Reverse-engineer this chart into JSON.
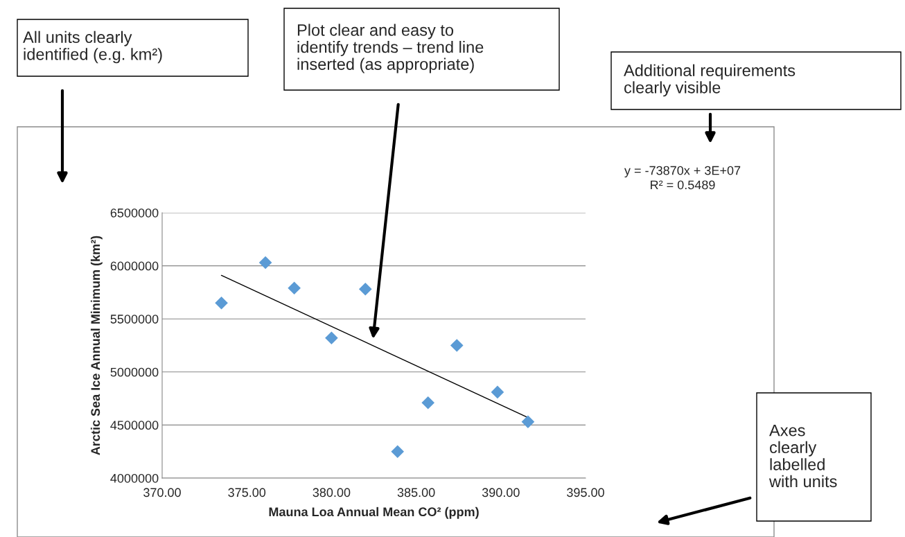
{
  "chart_data": {
    "type": "scatter",
    "xlabel": "Mauna Loa Annual Mean CO² (ppm)",
    "ylabel": "Arctic Sea Ice Annual Minimum (km²)",
    "xlim": [
      370,
      395
    ],
    "ylim": [
      4000000,
      6500000
    ],
    "xticks": [
      {
        "value": 370,
        "label": "370.00"
      },
      {
        "value": 375,
        "label": "375.00"
      },
      {
        "value": 380,
        "label": "380.00"
      },
      {
        "value": 385,
        "label": "385.00"
      },
      {
        "value": 390,
        "label": "390.00"
      },
      {
        "value": 395,
        "label": "395.00"
      }
    ],
    "yticks": [
      4000000,
      4500000,
      5000000,
      5500000,
      6000000,
      6500000
    ],
    "grid": "y",
    "legend": false,
    "marker": "diamond",
    "series": [
      {
        "color": "#5b9bd5",
        "x": [
          373.5,
          376.1,
          377.8,
          380.0,
          382.0,
          383.9,
          385.7,
          387.4,
          389.8,
          391.6
        ],
        "values": [
          5650000,
          6030000,
          5790000,
          5320000,
          5780000,
          4250000,
          4710000,
          5250000,
          4810000,
          4530000
        ]
      },
      {
        "type": "line",
        "color": "#000000",
        "marker": "none",
        "x": [
          373.5,
          391.6
        ],
        "values": [
          5910000,
          4570000
        ]
      }
    ],
    "annotations": [
      "All units clearly\nidentified (e.g. km²)",
      "Plot clear and easy to\nidentify trends – trend line\ninserted (as appropriate)",
      "Additional requirements\nclearly visible",
      "y = -73870x + 3E+07\nR² = 0.5489",
      "Axes\nclearly\nlabelled\nwith units"
    ]
  }
}
